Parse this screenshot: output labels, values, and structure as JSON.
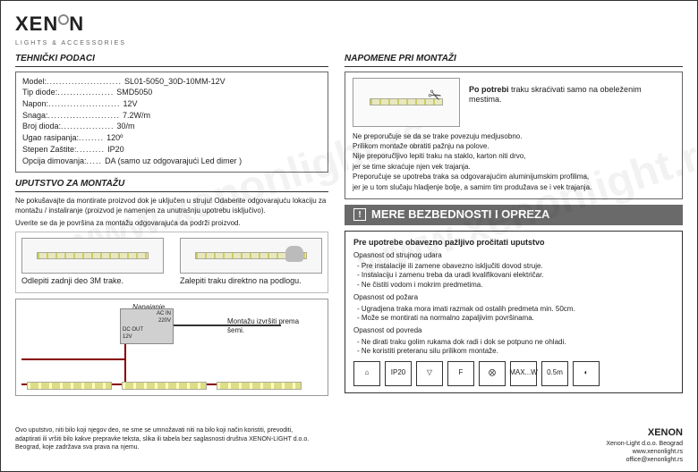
{
  "brand": {
    "name": "XENON",
    "subtitle": "LIGHTS & ACCESSORIES"
  },
  "watermark": "www.xenonlight.rs",
  "left": {
    "specs_title": "TEHNIČKI PODACI",
    "specs": [
      {
        "label": "Model:",
        "dots": "........................",
        "value": "SL01-5050_30D-10MM-12V"
      },
      {
        "label": "Tip diode:",
        "dots": "..................",
        "value": "SMD5050"
      },
      {
        "label": "Napon:",
        "dots": ".......................",
        "value": "12V"
      },
      {
        "label": "Snaga:",
        "dots": ".......................",
        "value": "7.2W/m"
      },
      {
        "label": "Broj dioda:",
        "dots": ".................",
        "value": "30/m"
      },
      {
        "label": "Ugao rasipanja:",
        "dots": "........",
        "value": "120º"
      },
      {
        "label": "Stepen Zaštite:",
        "dots": ".........",
        "value": "IP20"
      },
      {
        "label": "Opcija dimovanja:",
        "dots": ".....",
        "value": "DA (samo uz odgovarajući Led dimer )"
      }
    ],
    "instr_title": "UPUTSTVO ZA MONTAŽU",
    "instr_para1": "Ne pokušavajte da montirate proizvod dok je uključen u struju! Odaberite odgovarajuću lokaciju za montažu / instaliranje (proizvod je namenjen za unutrašnju upotrebu isključivo).",
    "instr_para2": "Uverite se da je površina za montažu odgovarajuća da podrži proizvod.",
    "step1": "Odlepiti zadnji deo 3M trake.",
    "step2": "Zalepiti traku direktno na podlogu.",
    "diag_label": "Napajanje",
    "diag_text": "Montažu izvršiti prema šemi.",
    "psu": {
      "acin": "AC IN",
      "acv": "220V",
      "dcout": "DC OUT",
      "dcv": "12V"
    }
  },
  "right": {
    "title": "NAPOMENE PRI MONTAŽI",
    "cut_text_bold": "Po potrebi",
    "cut_text_rest": " traku skraćivati samo na obeleženim mestima.",
    "notes": [
      "Ne preporučuje se da se trake povezuju medjusobno.",
      "Prilikom montaže obratiti pažnju na polove.",
      "Nije preporučljivo lepiti traku na staklo, karton niti drvo,",
      "jer se time skraćuje njen vek trajanja.",
      "Preporučuje se upotreba traka sa odgovarajućim aluminijumskim profilima,",
      "jer je u tom slučaju hladjenje bolje, a samim tim produžava se i vek trajanja."
    ],
    "safety_bar": "MERE BEZBEDNOSTI I OPREZA",
    "safety": {
      "heading": "Pre upotrebe obavezno pažljivo pročitati uputstvo",
      "g1_t": "Opasnost od strujnog udara",
      "g1": [
        "Pre instalacije ili zamene obavezno isključiti dovod struje.",
        "Instalaciju i zamenu treba da uradi kvalifikovani električar.",
        "Ne čistiti vodom i mokrim predmetima."
      ],
      "g2_t": "Opasnost od požara",
      "g2": [
        "Ugradjena traka mora imati razmak od ostalih predmeta min. 50cm.",
        "Može se montirati na normalno zapaljivim površinama."
      ],
      "g3_t": "Opasnost od povreda",
      "g3": [
        "Ne dirati traku golim rukama dok radi i dok se potpuno ne ohladi.",
        "Ne koristiti preteranu silu prilikom montaže."
      ]
    },
    "icons": [
      "⌂",
      "IP20",
      "▽",
      "F",
      "⨂",
      "MAX...W",
      "0.5m",
      "◐"
    ]
  },
  "footer": {
    "left": "Ovo uputstvo, niti bilo koji njegov deo, ne sme se umnožavati niti na bilo koji način koristiti, prevoditi, adaptirati ili vršiti bilo kakve prepravke teksta, slika ili tabela bez saglasnosti društva XENON-LIGHT d.o.o. Beograd, koje zadržava sva prava na njemu.",
    "right_brand": "XENON",
    "right_lines": [
      "Xenon-Light d.o.o. Beograd",
      "www.xenonlight.rs",
      "office@xenonlight.rs"
    ]
  }
}
